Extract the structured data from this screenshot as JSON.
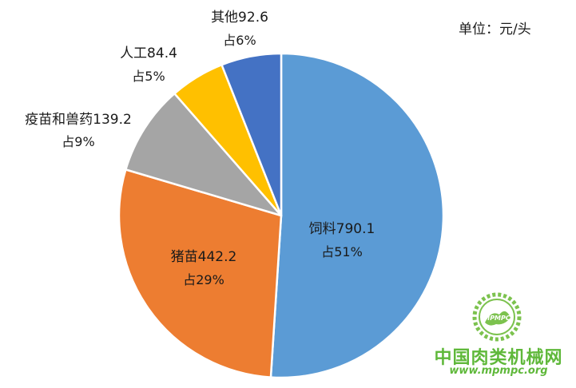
{
  "chart_data": {
    "type": "pie",
    "unit_label": "单位：元/头",
    "slices": [
      {
        "name": "饲料",
        "value": 790.1,
        "percent_label": "占51%",
        "color": "#5b9bd5"
      },
      {
        "name": "猪苗",
        "value": 442.2,
        "percent_label": "占29%",
        "color": "#ed7d31"
      },
      {
        "name": "疫苗和兽药",
        "value": 139.2,
        "percent_label": "占9%",
        "color": "#a5a5a5"
      },
      {
        "name": "人工",
        "value": 84.4,
        "percent_label": "占5%",
        "color": "#ffc000"
      },
      {
        "name": "其他",
        "value": 92.6,
        "percent_label": "占6%",
        "color": "#4472c4"
      }
    ],
    "value_labels": [
      "790.1",
      "442.2",
      "139.2",
      "84.4",
      "92.6"
    ]
  },
  "watermark": {
    "logo_text": "MPMPC",
    "name": "中国肉类机械网",
    "url": "www.mpmpc.org"
  }
}
